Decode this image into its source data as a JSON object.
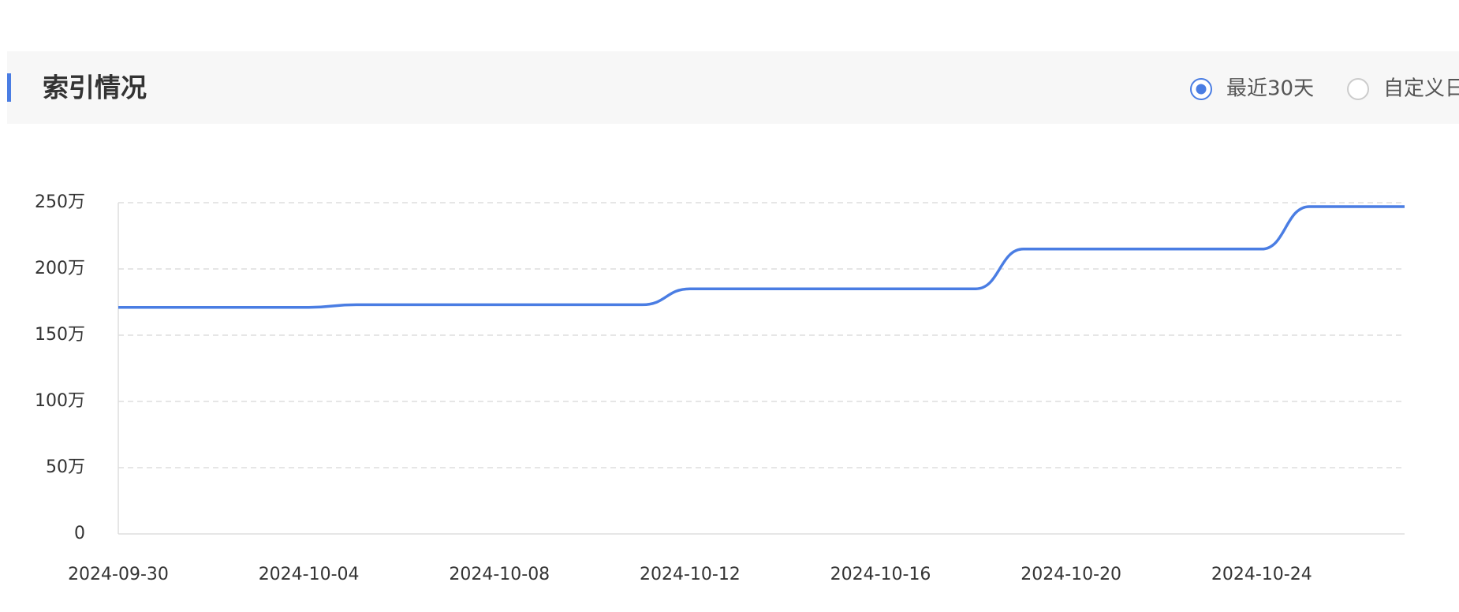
{
  "chart_data": {
    "type": "line",
    "title": "索引情况",
    "categories": [
      "2024-09-30",
      null,
      null,
      null,
      "2024-10-04",
      null,
      null,
      null,
      "2024-10-08",
      null,
      null,
      null,
      "2024-10-12",
      null,
      null,
      null,
      "2024-10-16",
      null,
      null,
      null,
      "2024-10-20",
      null,
      null,
      null,
      "2024-10-24",
      null,
      null,
      null
    ],
    "series": [
      {
        "color": "#4a7de3",
        "values": [
          171,
          171,
          171,
          171,
          171,
          173,
          173,
          173,
          173,
          173,
          173,
          173,
          185,
          185,
          185,
          185,
          185,
          185,
          185,
          215,
          215,
          215,
          215,
          215,
          215,
          247,
          247,
          247
        ]
      }
    ],
    "ylim": [
      0,
      250
    ],
    "yticks": [
      0,
      {
        "value": 50,
        "label": "50万"
      },
      {
        "value": 100,
        "label": "100万"
      },
      {
        "value": 150,
        "label": "150万"
      },
      {
        "value": 200,
        "label": "200万"
      },
      {
        "value": 250,
        "label": "250万"
      }
    ],
    "grid": true
  },
  "controls": {
    "options": [
      "最近30天",
      "自定义日"
    ],
    "selected": 0
  }
}
